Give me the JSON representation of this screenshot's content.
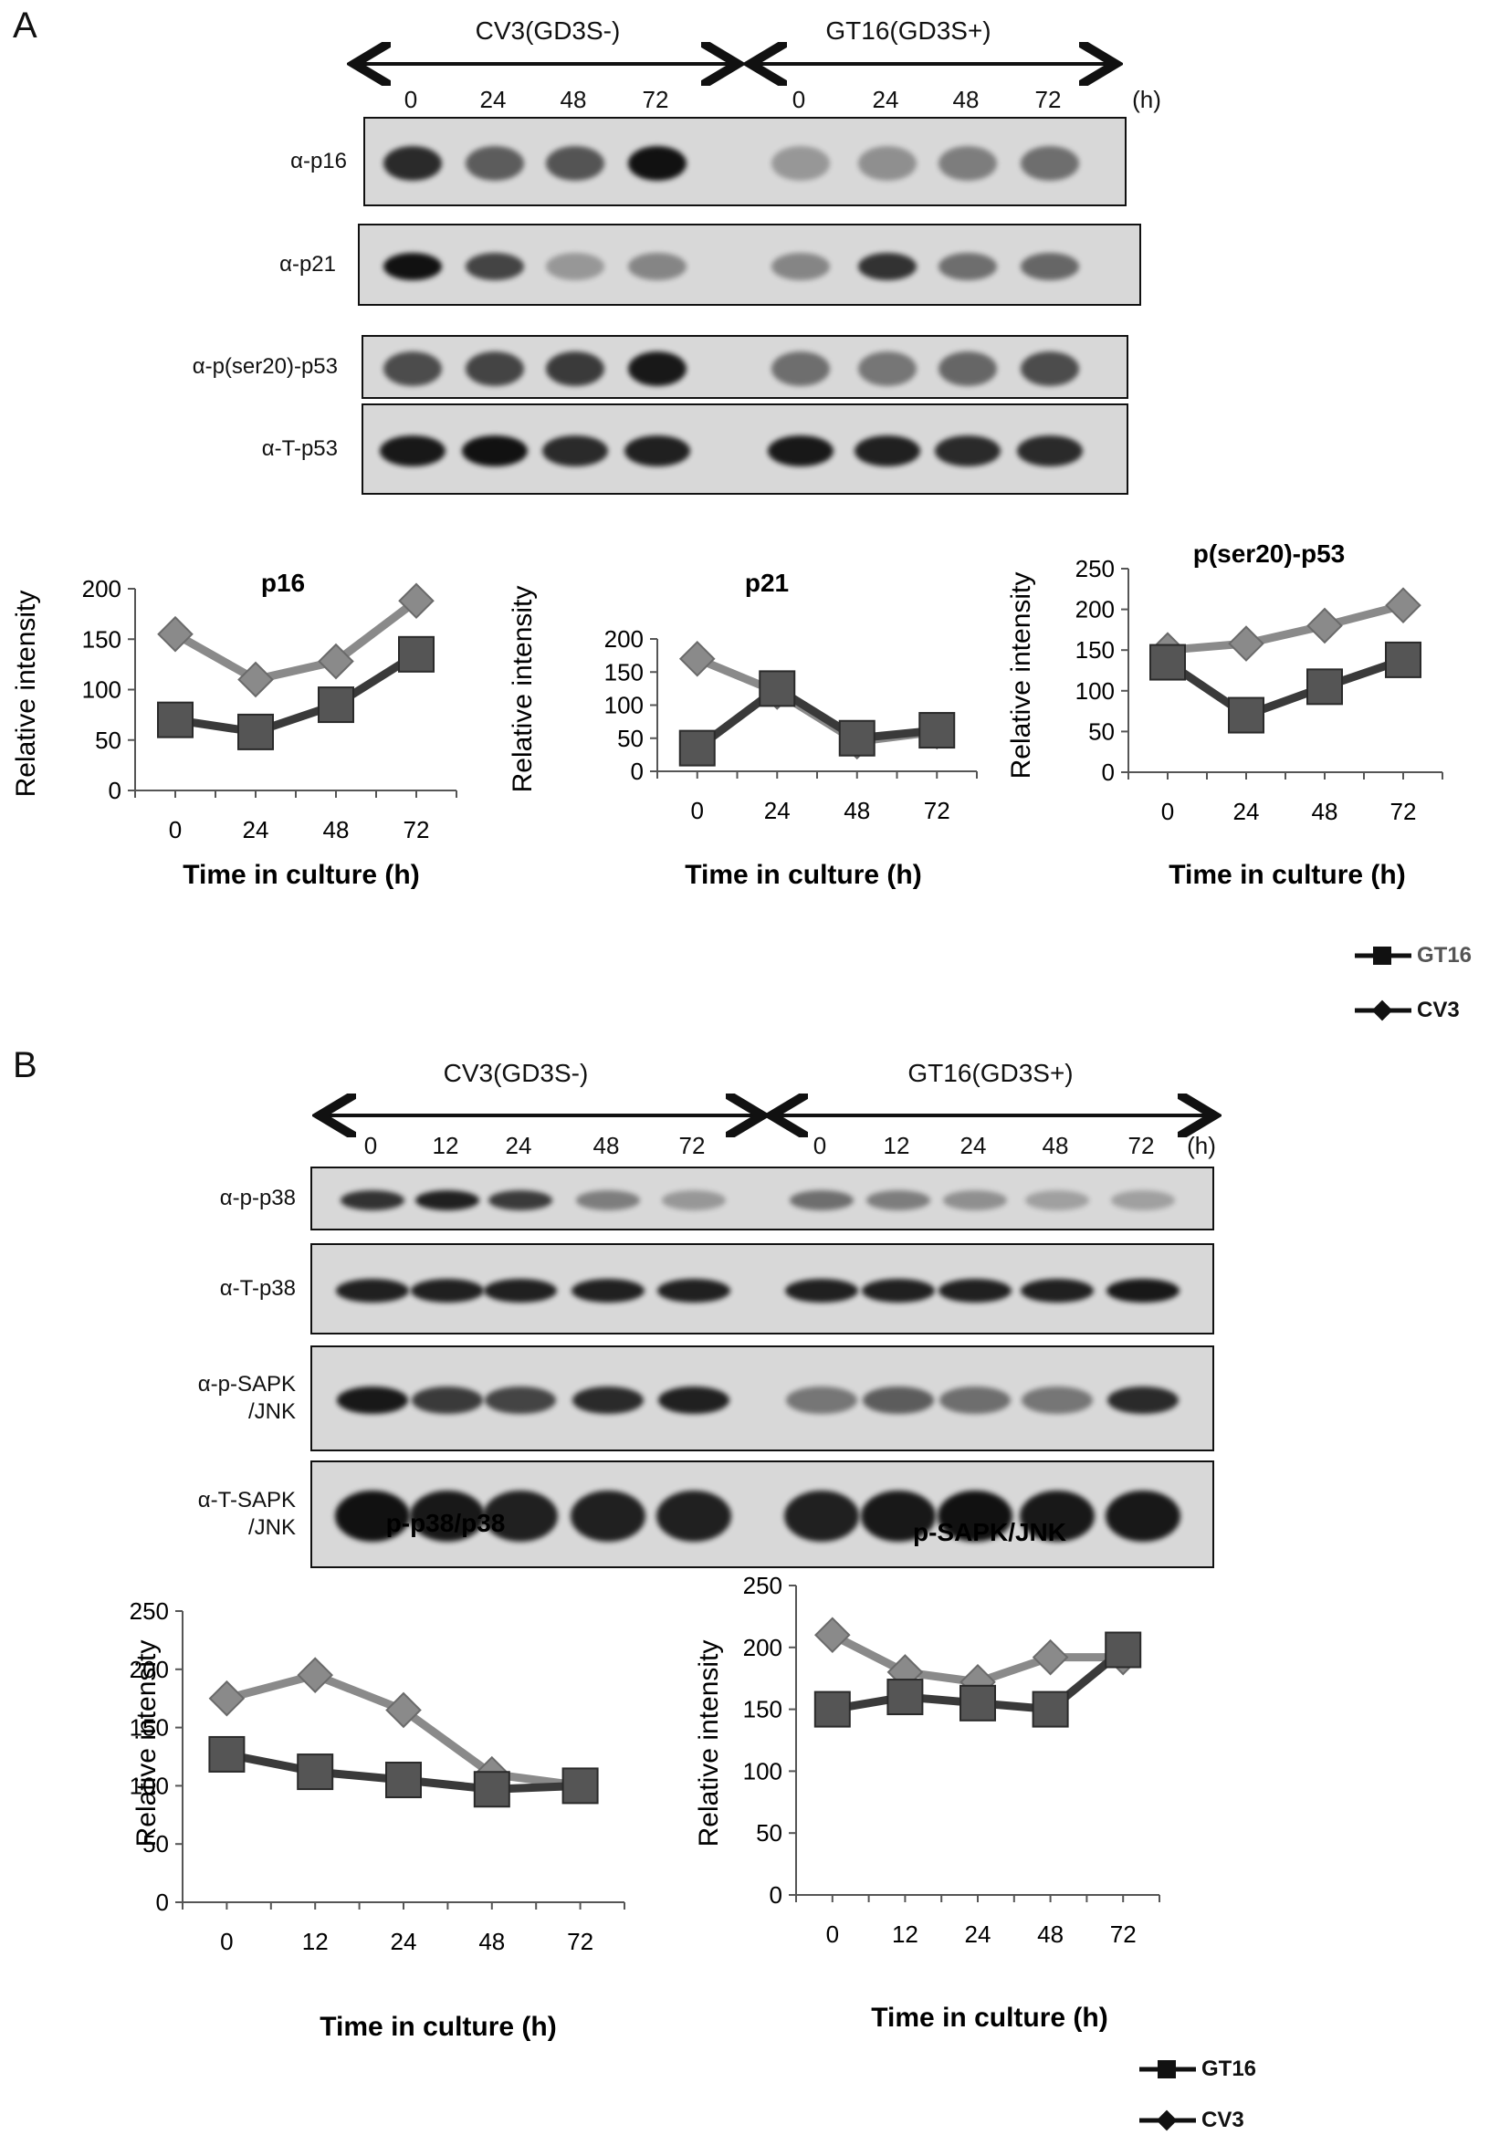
{
  "panel_a": {
    "letter": "A",
    "group_left": "CV3(GD3S-)",
    "group_right": "GT16(GD3S+)",
    "lanes": [
      "0",
      "24",
      "48",
      "72",
      "0",
      "24",
      "48",
      "72"
    ],
    "unit": "(h)",
    "blots": [
      {
        "label": "α-p16",
        "intensity": [
          0.85,
          0.55,
          0.6,
          1.0,
          0.2,
          0.25,
          0.35,
          0.45
        ]
      },
      {
        "label": "α-p21",
        "intensity": [
          1.0,
          0.7,
          0.2,
          0.3,
          0.3,
          0.8,
          0.45,
          0.5
        ]
      },
      {
        "label": "α-p(ser20)-p53",
        "intensity": [
          0.65,
          0.7,
          0.75,
          0.95,
          0.45,
          0.4,
          0.5,
          0.65
        ]
      },
      {
        "label": "α-T-p53",
        "intensity": [
          0.95,
          1.0,
          0.85,
          0.9,
          0.95,
          0.9,
          0.85,
          0.85
        ]
      }
    ],
    "legend": [
      "GT16",
      "CV3"
    ]
  },
  "panel_b": {
    "letter": "B",
    "group_left": "CV3(GD3S-)",
    "group_right": "GT16(GD3S+)",
    "lanes": [
      "0",
      "12",
      "24",
      "48",
      "72",
      "0",
      "12",
      "24",
      "48",
      "72"
    ],
    "unit": "(h)",
    "blots": [
      {
        "label": "α-p-p38",
        "intensity": [
          0.8,
          0.9,
          0.75,
          0.35,
          0.2,
          0.45,
          0.35,
          0.25,
          0.15,
          0.15
        ]
      },
      {
        "label": "α-T-p38",
        "intensity": [
          0.9,
          0.9,
          0.9,
          0.9,
          0.9,
          0.9,
          0.9,
          0.9,
          0.9,
          0.95
        ]
      },
      {
        "label": "α-p-SAPK\n/JNK",
        "intensity": [
          0.95,
          0.75,
          0.7,
          0.85,
          0.9,
          0.4,
          0.55,
          0.45,
          0.4,
          0.85
        ]
      },
      {
        "label": "α-T-SAPK\n/JNK",
        "intensity": [
          1.0,
          0.95,
          0.9,
          0.9,
          0.9,
          0.9,
          0.95,
          1.0,
          0.95,
          0.95
        ]
      }
    ],
    "legend": [
      "GT16",
      "CV3"
    ]
  },
  "colors": {
    "gt16": "#3a3a3a",
    "cv3": "#8a8a8a",
    "blot_bg": "#d8d8d8",
    "band": "#111111"
  },
  "chart_data": [
    {
      "type": "line",
      "title": "p16",
      "xlabel": "Time in culture (h)",
      "ylabel": "Relative intensity",
      "categories": [
        "0",
        "24",
        "48",
        "72"
      ],
      "ylim": [
        0,
        200
      ],
      "yticks": [
        0,
        50,
        100,
        150,
        200
      ],
      "series": [
        {
          "name": "CV3",
          "values": [
            155,
            110,
            128,
            188
          ]
        },
        {
          "name": "GT16",
          "values": [
            70,
            58,
            85,
            135
          ]
        }
      ]
    },
    {
      "type": "line",
      "title": "p21",
      "xlabel": "Time in culture (h)",
      "ylabel": "Relative intensity",
      "categories": [
        "0",
        "24",
        "48",
        "72"
      ],
      "ylim": [
        0,
        200
      ],
      "yticks": [
        0,
        50,
        100,
        150,
        200
      ],
      "series": [
        {
          "name": "CV3",
          "values": [
            170,
            120,
            45,
            60
          ]
        },
        {
          "name": "GT16",
          "values": [
            35,
            125,
            50,
            62
          ]
        }
      ]
    },
    {
      "type": "line",
      "title": "p(ser20)-p53",
      "xlabel": "Time in culture (h)",
      "ylabel": "Relative intensity",
      "categories": [
        "0",
        "24",
        "48",
        "72"
      ],
      "ylim": [
        0,
        250
      ],
      "yticks": [
        0,
        50,
        100,
        150,
        200,
        250
      ],
      "series": [
        {
          "name": "CV3",
          "values": [
            150,
            158,
            180,
            205
          ]
        },
        {
          "name": "GT16",
          "values": [
            135,
            70,
            105,
            138
          ]
        }
      ]
    },
    {
      "type": "line",
      "title": "p-p38/p38",
      "xlabel": "Time in culture (h)",
      "ylabel": "Relative intensity",
      "categories": [
        "0",
        "12",
        "24",
        "48",
        "72"
      ],
      "ylim": [
        0,
        250
      ],
      "yticks": [
        0,
        50,
        100,
        150,
        200,
        250
      ],
      "series": [
        {
          "name": "CV3",
          "values": [
            175,
            195,
            165,
            110,
            100
          ]
        },
        {
          "name": "GT16",
          "values": [
            127,
            112,
            105,
            97,
            100
          ]
        }
      ]
    },
    {
      "type": "line",
      "title": "p-SAPK/JNK",
      "xlabel": "Time in culture (h)",
      "ylabel": "Relative intensity",
      "categories": [
        "0",
        "12",
        "24",
        "48",
        "72"
      ],
      "ylim": [
        0,
        250
      ],
      "yticks": [
        0,
        50,
        100,
        150,
        200,
        250
      ],
      "series": [
        {
          "name": "CV3",
          "values": [
            210,
            180,
            172,
            192,
            192
          ]
        },
        {
          "name": "GT16",
          "values": [
            150,
            160,
            155,
            150,
            198
          ]
        }
      ]
    }
  ]
}
